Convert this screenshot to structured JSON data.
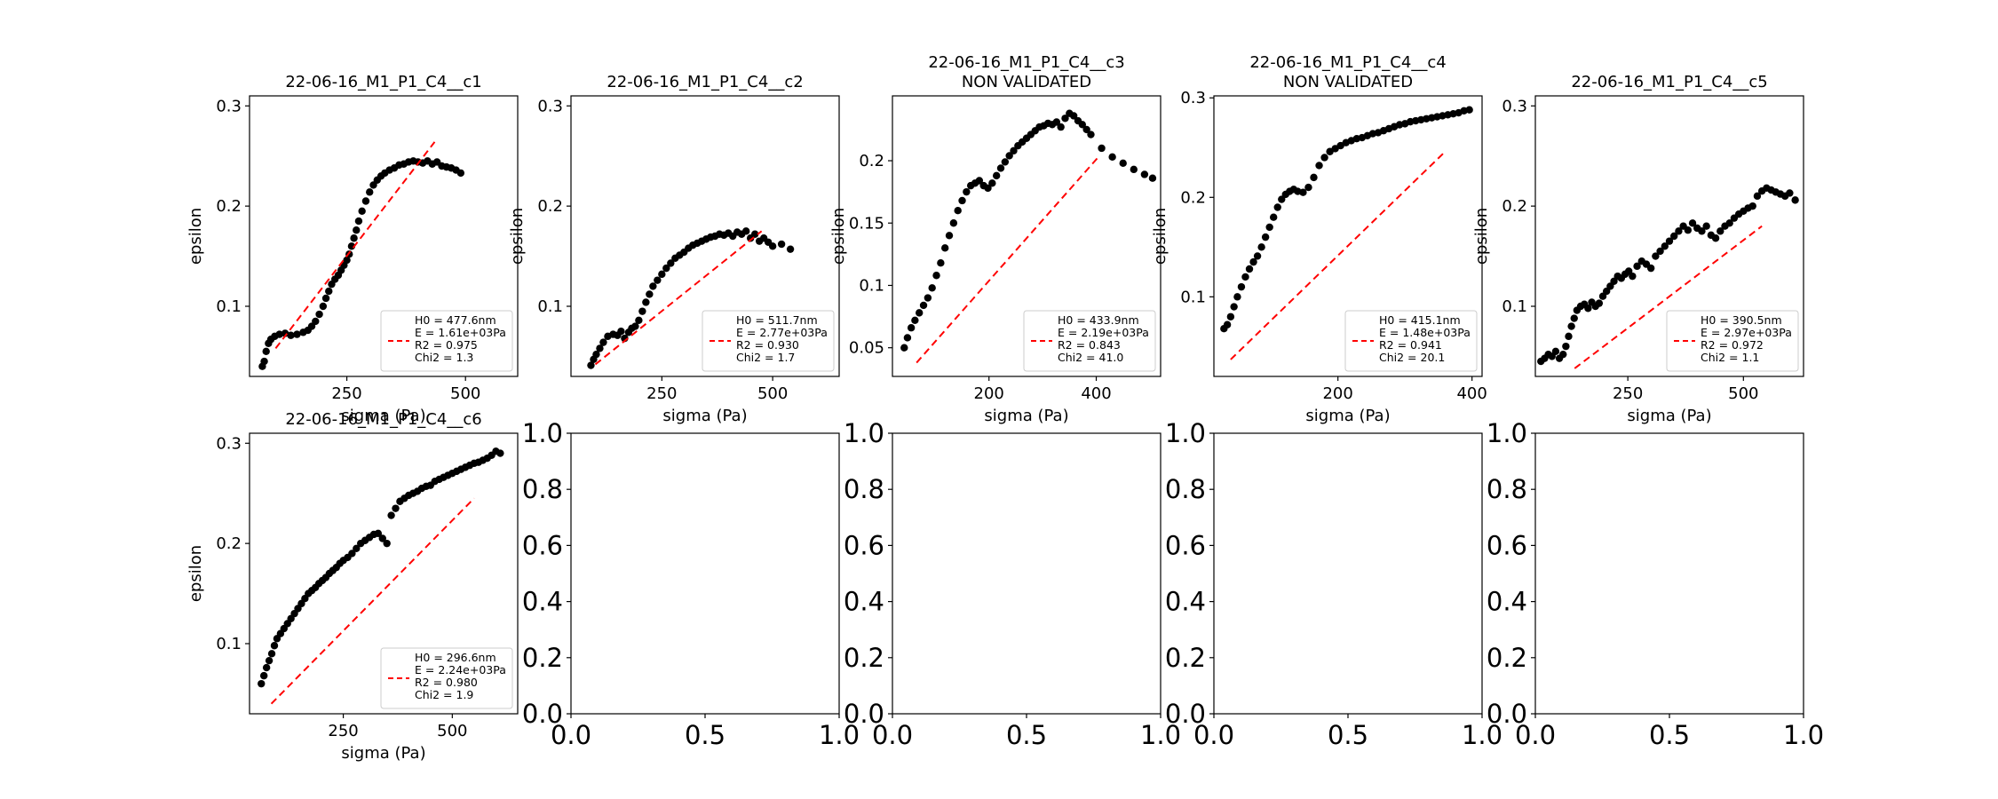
{
  "figure": {
    "background": "#ffffff"
  },
  "colors": {
    "points": "#000000",
    "fit": "#ff0000",
    "axes": "#000000",
    "legend_border": "#cccccc"
  },
  "chart_data": [
    {
      "type": "scatter",
      "title": "22-06-16_M1_P1_C4__c1",
      "xlabel": "sigma (Pa)",
      "ylabel": "epsilon",
      "xlim": [
        45,
        610
      ],
      "ylim": [
        0.03,
        0.31
      ],
      "xticks": [
        250,
        500
      ],
      "yticks": [
        0.1,
        0.2,
        0.3
      ],
      "series": [
        {
          "kind": "points",
          "color": "#000000",
          "x": [
            72,
            76,
            80,
            85,
            90,
            98,
            108,
            120,
            132,
            145,
            158,
            168,
            176,
            184,
            192,
            200,
            206,
            212,
            218,
            225,
            232,
            238,
            244,
            250,
            255,
            260,
            265,
            270,
            275,
            282,
            290,
            298,
            306,
            314,
            322,
            330,
            340,
            350,
            360,
            370,
            380,
            390,
            400,
            410,
            420,
            430,
            440,
            450,
            460,
            470,
            480,
            490
          ],
          "y": [
            0.04,
            0.045,
            0.055,
            0.063,
            0.067,
            0.07,
            0.072,
            0.073,
            0.071,
            0.072,
            0.074,
            0.076,
            0.08,
            0.085,
            0.092,
            0.1,
            0.108,
            0.115,
            0.122,
            0.127,
            0.131,
            0.136,
            0.141,
            0.146,
            0.152,
            0.16,
            0.168,
            0.176,
            0.185,
            0.195,
            0.205,
            0.214,
            0.221,
            0.226,
            0.23,
            0.233,
            0.236,
            0.238,
            0.241,
            0.242,
            0.244,
            0.245,
            0.244,
            0.243,
            0.245,
            0.242,
            0.244,
            0.24,
            0.239,
            0.238,
            0.236,
            0.233
          ]
        },
        {
          "kind": "fit",
          "color": "#ff0000",
          "x": [
            100,
            435
          ],
          "y": [
            0.058,
            0.264
          ]
        }
      ],
      "legend": {
        "position": "lower right",
        "lines": [
          "H0 = 477.6nm",
          "E = 1.61e+03Pa",
          "R2 = 0.975",
          "Chi2 = 1.3"
        ]
      }
    },
    {
      "type": "scatter",
      "title": "22-06-16_M1_P1_C4__c2",
      "xlabel": "sigma (Pa)",
      "ylabel": "epsilon",
      "xlim": [
        45,
        650
      ],
      "ylim": [
        0.03,
        0.31
      ],
      "xticks": [
        250,
        500
      ],
      "yticks": [
        0.1,
        0.2,
        0.3
      ],
      "series": [
        {
          "kind": "points",
          "color": "#000000",
          "x": [
            90,
            96,
            102,
            110,
            118,
            128,
            140,
            150,
            158,
            166,
            175,
            182,
            190,
            198,
            206,
            214,
            222,
            230,
            240,
            250,
            260,
            270,
            280,
            290,
            300,
            310,
            320,
            330,
            340,
            350,
            360,
            370,
            380,
            390,
            400,
            410,
            420,
            430,
            440,
            450,
            460,
            470,
            480,
            490,
            500,
            520,
            540
          ],
          "y": [
            0.041,
            0.047,
            0.052,
            0.058,
            0.064,
            0.07,
            0.072,
            0.071,
            0.075,
            0.068,
            0.074,
            0.078,
            0.08,
            0.086,
            0.095,
            0.104,
            0.112,
            0.12,
            0.126,
            0.132,
            0.138,
            0.143,
            0.148,
            0.151,
            0.154,
            0.158,
            0.161,
            0.163,
            0.165,
            0.167,
            0.169,
            0.17,
            0.172,
            0.171,
            0.173,
            0.17,
            0.174,
            0.172,
            0.175,
            0.168,
            0.172,
            0.165,
            0.168,
            0.164,
            0.16,
            0.162,
            0.157
          ]
        },
        {
          "kind": "fit",
          "color": "#ff0000",
          "x": [
            100,
            475
          ],
          "y": [
            0.042,
            0.175
          ]
        }
      ],
      "legend": {
        "position": "lower right",
        "lines": [
          "H0 = 511.7nm",
          "E = 2.77e+03Pa",
          "R2 = 0.930",
          "Chi2 = 1.7"
        ]
      }
    },
    {
      "type": "scatter",
      "title": "22-06-16_M1_P1_C4__c3\nNON VALIDATED",
      "xlabel": "sigma (Pa)",
      "ylabel": "epsilon",
      "xlim": [
        20,
        520
      ],
      "ylim": [
        0.027,
        0.252
      ],
      "xticks": [
        200,
        400
      ],
      "yticks": [
        0.05,
        0.1,
        0.15,
        0.2
      ],
      "series": [
        {
          "kind": "points",
          "color": "#000000",
          "x": [
            42,
            48,
            55,
            62,
            70,
            78,
            86,
            94,
            102,
            110,
            118,
            126,
            134,
            142,
            150,
            158,
            166,
            174,
            182,
            190,
            198,
            206,
            214,
            222,
            230,
            238,
            246,
            254,
            262,
            270,
            278,
            286,
            294,
            302,
            310,
            318,
            326,
            334,
            342,
            350,
            358,
            366,
            374,
            382,
            390,
            410,
            430,
            450,
            470,
            490,
            505
          ],
          "y": [
            0.05,
            0.058,
            0.066,
            0.072,
            0.078,
            0.084,
            0.09,
            0.098,
            0.108,
            0.118,
            0.13,
            0.14,
            0.15,
            0.16,
            0.168,
            0.175,
            0.18,
            0.182,
            0.184,
            0.18,
            0.178,
            0.182,
            0.188,
            0.194,
            0.199,
            0.204,
            0.208,
            0.212,
            0.215,
            0.218,
            0.221,
            0.224,
            0.227,
            0.228,
            0.23,
            0.229,
            0.231,
            0.227,
            0.234,
            0.238,
            0.236,
            0.232,
            0.229,
            0.225,
            0.221,
            0.21,
            0.203,
            0.198,
            0.193,
            0.189,
            0.186
          ]
        },
        {
          "kind": "fit",
          "color": "#ff0000",
          "x": [
            65,
            402
          ],
          "y": [
            0.038,
            0.202
          ]
        }
      ],
      "legend": {
        "position": "lower right",
        "lines": [
          "H0 = 433.9nm",
          "E = 2.19e+03Pa",
          "R2 = 0.843",
          "Chi2 = 41.0"
        ]
      }
    },
    {
      "type": "scatter",
      "title": "22-06-16_M1_P1_C4__c4\nNON VALIDATED",
      "xlabel": "sigma (Pa)",
      "ylabel": "epsilon",
      "xlim": [
        15,
        415
      ],
      "ylim": [
        0.02,
        0.302
      ],
      "xticks": [
        200,
        400
      ],
      "yticks": [
        0.1,
        0.2,
        0.3
      ],
      "series": [
        {
          "kind": "points",
          "color": "#000000",
          "x": [
            30,
            35,
            40,
            45,
            50,
            56,
            62,
            68,
            74,
            80,
            86,
            92,
            98,
            104,
            110,
            116,
            122,
            128,
            134,
            140,
            148,
            156,
            164,
            172,
            180,
            188,
            196,
            204,
            212,
            220,
            228,
            236,
            244,
            252,
            260,
            268,
            276,
            284,
            292,
            300,
            308,
            316,
            324,
            332,
            340,
            348,
            356,
            364,
            372,
            380,
            388,
            396
          ],
          "y": [
            0.068,
            0.072,
            0.08,
            0.09,
            0.1,
            0.11,
            0.12,
            0.128,
            0.135,
            0.141,
            0.15,
            0.16,
            0.17,
            0.18,
            0.19,
            0.198,
            0.203,
            0.206,
            0.208,
            0.206,
            0.205,
            0.21,
            0.22,
            0.232,
            0.24,
            0.246,
            0.249,
            0.252,
            0.255,
            0.257,
            0.259,
            0.26,
            0.262,
            0.264,
            0.265,
            0.267,
            0.269,
            0.271,
            0.273,
            0.274,
            0.276,
            0.277,
            0.278,
            0.279,
            0.28,
            0.281,
            0.282,
            0.283,
            0.284,
            0.285,
            0.287,
            0.288
          ]
        },
        {
          "kind": "fit",
          "color": "#ff0000",
          "x": [
            40,
            360
          ],
          "y": [
            0.037,
            0.246
          ]
        }
      ],
      "legend": {
        "position": "lower right",
        "lines": [
          "H0 = 415.1nm",
          "E = 1.48e+03Pa",
          "R2 = 0.941",
          "Chi2 = 20.1"
        ]
      }
    },
    {
      "type": "scatter",
      "title": "22-06-16_M1_P1_C4__c5",
      "xlabel": "sigma (Pa)",
      "ylabel": "epsilon",
      "xlim": [
        50,
        630
      ],
      "ylim": [
        0.03,
        0.31
      ],
      "xticks": [
        250,
        500
      ],
      "yticks": [
        0.1,
        0.2,
        0.3
      ],
      "series": [
        {
          "kind": "points",
          "color": "#000000",
          "x": [
            62,
            70,
            78,
            86,
            94,
            102,
            110,
            116,
            122,
            128,
            134,
            140,
            148,
            156,
            164,
            172,
            180,
            188,
            196,
            204,
            212,
            220,
            228,
            236,
            244,
            252,
            260,
            270,
            280,
            290,
            300,
            310,
            320,
            330,
            340,
            350,
            360,
            370,
            380,
            390,
            400,
            410,
            420,
            430,
            440,
            450,
            460,
            470,
            480,
            490,
            500,
            510,
            520,
            530,
            540,
            550,
            560,
            570,
            580,
            590,
            600,
            612
          ],
          "y": [
            0.045,
            0.048,
            0.052,
            0.05,
            0.055,
            0.048,
            0.052,
            0.06,
            0.07,
            0.08,
            0.088,
            0.096,
            0.1,
            0.102,
            0.098,
            0.104,
            0.1,
            0.103,
            0.11,
            0.115,
            0.12,
            0.125,
            0.13,
            0.128,
            0.132,
            0.135,
            0.13,
            0.14,
            0.145,
            0.142,
            0.138,
            0.15,
            0.155,
            0.16,
            0.165,
            0.17,
            0.175,
            0.18,
            0.176,
            0.183,
            0.178,
            0.175,
            0.18,
            0.171,
            0.168,
            0.175,
            0.18,
            0.183,
            0.188,
            0.192,
            0.195,
            0.198,
            0.2,
            0.21,
            0.215,
            0.218,
            0.216,
            0.214,
            0.212,
            0.21,
            0.213,
            0.206
          ]
        },
        {
          "kind": "fit",
          "color": "#ff0000",
          "x": [
            135,
            540
          ],
          "y": [
            0.038,
            0.18
          ]
        }
      ],
      "legend": {
        "position": "lower right",
        "lines": [
          "H0 = 390.5nm",
          "E = 2.97e+03Pa",
          "R2 = 0.972",
          "Chi2 = 1.1"
        ]
      }
    },
    {
      "type": "scatter",
      "title": "22-06-16_M1_P1_C4__c6",
      "xlabel": "sigma (Pa)",
      "ylabel": "epsilon",
      "xlim": [
        35,
        650
      ],
      "ylim": [
        0.03,
        0.31
      ],
      "xticks": [
        250,
        500
      ],
      "yticks": [
        0.1,
        0.2,
        0.3
      ],
      "series": [
        {
          "kind": "points",
          "color": "#000000",
          "x": [
            62,
            68,
            74,
            80,
            86,
            92,
            98,
            106,
            114,
            122,
            130,
            138,
            146,
            154,
            162,
            170,
            178,
            186,
            194,
            202,
            210,
            218,
            226,
            234,
            242,
            250,
            260,
            270,
            280,
            290,
            300,
            310,
            320,
            330,
            340,
            350,
            360,
            370,
            380,
            390,
            400,
            410,
            420,
            430,
            440,
            450,
            460,
            470,
            480,
            490,
            500,
            510,
            520,
            530,
            540,
            550,
            560,
            570,
            580,
            590,
            600,
            610
          ],
          "y": [
            0.06,
            0.068,
            0.076,
            0.083,
            0.09,
            0.098,
            0.105,
            0.11,
            0.115,
            0.12,
            0.125,
            0.13,
            0.135,
            0.14,
            0.145,
            0.15,
            0.153,
            0.156,
            0.16,
            0.163,
            0.166,
            0.17,
            0.173,
            0.176,
            0.18,
            0.183,
            0.186,
            0.19,
            0.195,
            0.2,
            0.203,
            0.206,
            0.209,
            0.21,
            0.205,
            0.2,
            0.228,
            0.235,
            0.242,
            0.245,
            0.248,
            0.25,
            0.252,
            0.255,
            0.257,
            0.258,
            0.262,
            0.264,
            0.266,
            0.268,
            0.27,
            0.272,
            0.274,
            0.276,
            0.278,
            0.28,
            0.281,
            0.283,
            0.285,
            0.288,
            0.292,
            0.29
          ]
        },
        {
          "kind": "fit",
          "color": "#ff0000",
          "x": [
            85,
            550
          ],
          "y": [
            0.04,
            0.245
          ]
        }
      ],
      "legend": {
        "position": "lower right",
        "lines": [
          "H0 = 296.6nm",
          "E = 2.24e+03Pa",
          "R2 = 0.980",
          "Chi2 = 1.9"
        ]
      }
    },
    {
      "type": "scatter",
      "title": "",
      "xlabel": "",
      "ylabel": "",
      "empty": true,
      "xlim": [
        0,
        1
      ],
      "ylim": [
        0,
        1
      ],
      "xticks": [
        "0.0",
        "0.5",
        "1.0"
      ],
      "yticks": [
        "0.0",
        "0.2",
        "0.4",
        "0.6",
        "0.8",
        "1.0"
      ],
      "series": []
    },
    {
      "type": "scatter",
      "title": "",
      "xlabel": "",
      "ylabel": "",
      "empty": true,
      "xlim": [
        0,
        1
      ],
      "ylim": [
        0,
        1
      ],
      "xticks": [
        "0.0",
        "0.5",
        "1.0"
      ],
      "yticks": [
        "0.0",
        "0.2",
        "0.4",
        "0.6",
        "0.8",
        "1.0"
      ],
      "series": []
    },
    {
      "type": "scatter",
      "title": "",
      "xlabel": "",
      "ylabel": "",
      "empty": true,
      "xlim": [
        0,
        1
      ],
      "ylim": [
        0,
        1
      ],
      "xticks": [
        "0.0",
        "0.5",
        "1.0"
      ],
      "yticks": [
        "0.0",
        "0.2",
        "0.4",
        "0.6",
        "0.8",
        "1.0"
      ],
      "series": []
    },
    {
      "type": "scatter",
      "title": "",
      "xlabel": "",
      "ylabel": "",
      "empty": true,
      "xlim": [
        0,
        1
      ],
      "ylim": [
        0,
        1
      ],
      "xticks": [
        "0.0",
        "0.5",
        "1.0"
      ],
      "yticks": [
        "0.0",
        "0.2",
        "0.4",
        "0.6",
        "0.8",
        "1.0"
      ],
      "series": []
    }
  ]
}
